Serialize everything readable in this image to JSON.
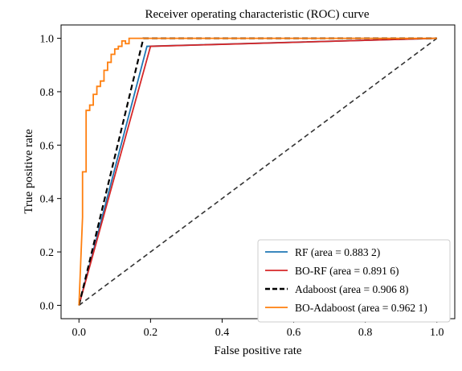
{
  "chart_data": {
    "type": "line",
    "title": "Receiver operating characteristic (ROC) curve",
    "xlabel": "False positive rate",
    "ylabel": "True positive rate",
    "xlim": [
      -0.05,
      1.05
    ],
    "ylim": [
      -0.05,
      1.05
    ],
    "xticks": [
      0.0,
      0.2,
      0.4,
      0.6,
      0.8,
      1.0
    ],
    "yticks": [
      0.0,
      0.2,
      0.4,
      0.6,
      0.8,
      1.0
    ],
    "xtick_labels": [
      "0.0",
      "0.2",
      "0.4",
      "0.6",
      "0.8",
      "1.0"
    ],
    "ytick_labels": [
      "0.0",
      "0.2",
      "0.4",
      "0.6",
      "0.8",
      "1.0"
    ],
    "grid": false,
    "legend_position": "lower-right",
    "series": [
      {
        "name": "RF (area = 0.883 2)",
        "color": "#1f77b4",
        "dash": "solid",
        "x": [
          0.0,
          0.19,
          1.0
        ],
        "y": [
          0.0,
          0.97,
          1.0
        ]
      },
      {
        "name": "BO-RF (area = 0.891 6)",
        "color": "#d62728",
        "dash": "solid",
        "x": [
          0.0,
          0.2,
          1.0
        ],
        "y": [
          0.0,
          0.97,
          1.0
        ]
      },
      {
        "name": "Adaboost (area = 0.906 8)",
        "color": "#000000",
        "dash": "dashed",
        "x": [
          0.0,
          0.18,
          1.0
        ],
        "y": [
          0.0,
          1.0,
          1.0
        ]
      },
      {
        "name": "BO-Adaboost (area = 0.962 1)",
        "color": "#ff7f0e",
        "dash": "solid",
        "x": [
          0.0,
          0.01,
          0.01,
          0.02,
          0.02,
          0.03,
          0.03,
          0.04,
          0.04,
          0.05,
          0.05,
          0.06,
          0.06,
          0.07,
          0.07,
          0.08,
          0.08,
          0.09,
          0.09,
          0.1,
          0.1,
          0.11,
          0.11,
          0.12,
          0.12,
          0.13,
          0.13,
          0.14,
          0.14,
          0.15,
          0.15,
          1.0
        ],
        "y": [
          0.0,
          0.33,
          0.5,
          0.5,
          0.73,
          0.73,
          0.75,
          0.75,
          0.79,
          0.79,
          0.82,
          0.82,
          0.84,
          0.84,
          0.88,
          0.88,
          0.91,
          0.91,
          0.94,
          0.94,
          0.96,
          0.96,
          0.97,
          0.97,
          0.99,
          0.99,
          0.98,
          0.98,
          1.0,
          1.0,
          1.0,
          1.0
        ]
      },
      {
        "name": "",
        "color": "#333333",
        "dash": "dashed",
        "x": [
          0.0,
          1.0
        ],
        "y": [
          0.0,
          1.0
        ]
      }
    ]
  }
}
